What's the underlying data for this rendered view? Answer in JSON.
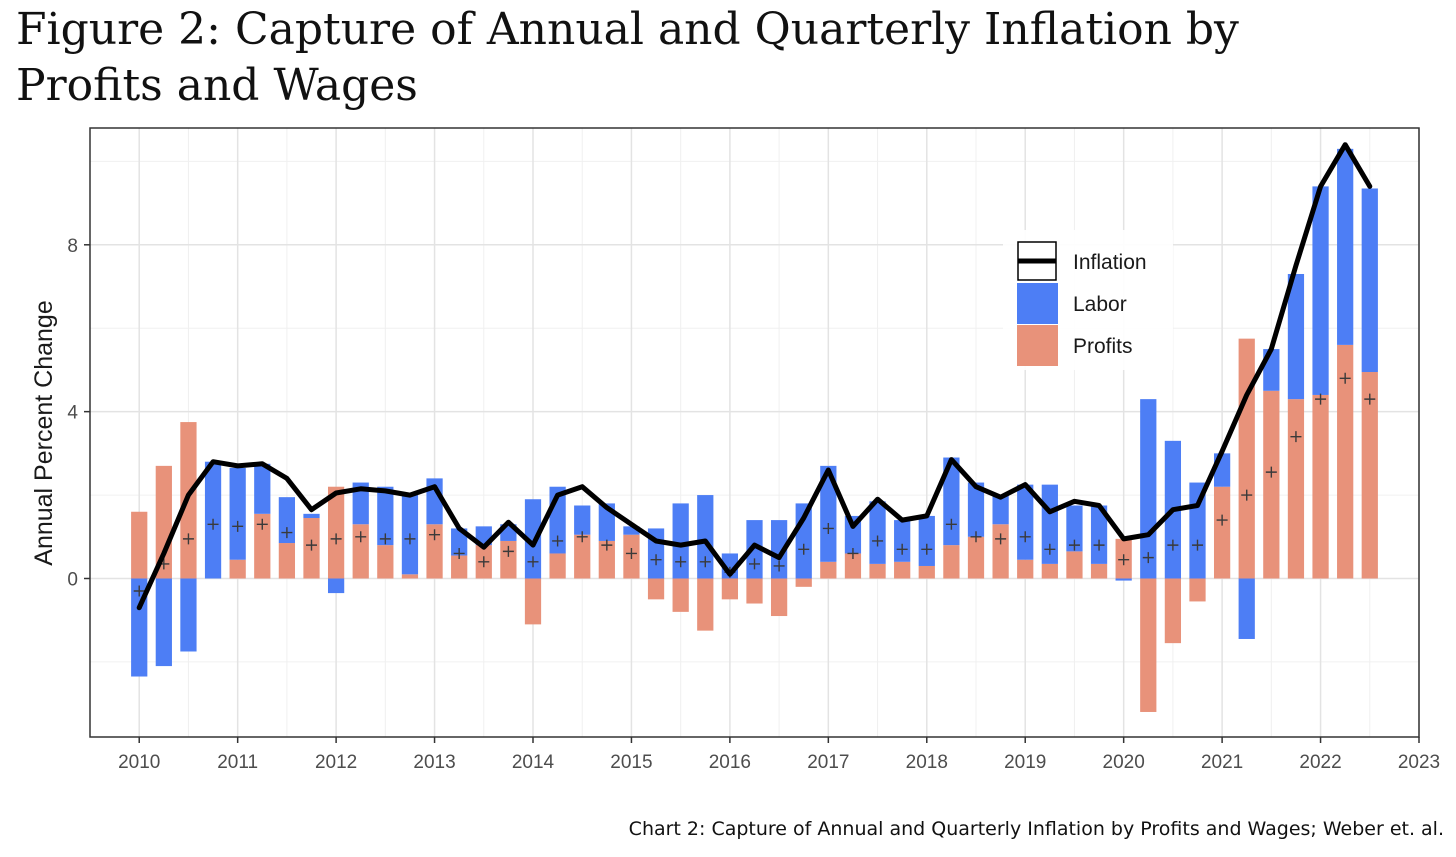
{
  "title": "Figure 2: Capture of Annual and Quarterly Inflation by Profits and Wages",
  "caption": "Chart 2: Capture of Annual and Quarterly Inflation by Profits and Wages; Weber et. al.",
  "chart_data": {
    "type": "bar",
    "subtype": "stacked bar with line and point markers",
    "xlabel": "",
    "ylabel": "Annual Percent Change",
    "xlim": [
      2009.5,
      2023
    ],
    "ylim": [
      -3.8,
      10.8
    ],
    "xticks": [
      "2010",
      "2011",
      "2012",
      "2013",
      "2014",
      "2015",
      "2016",
      "2017",
      "2018",
      "2019",
      "2020",
      "2021",
      "2022",
      "2023"
    ],
    "yticks": [
      "0",
      "4",
      "8"
    ],
    "grid": true,
    "legend_position": "top-right",
    "colors": {
      "labor": "#4d7ef5",
      "profits": "#e8927a",
      "inflation": "#000000"
    },
    "legend": [
      "Inflation",
      "Labor",
      "Profits"
    ],
    "x": [
      2010.0,
      2010.25,
      2010.5,
      2010.75,
      2011.0,
      2011.25,
      2011.5,
      2011.75,
      2012.0,
      2012.25,
      2012.5,
      2012.75,
      2013.0,
      2013.25,
      2013.5,
      2013.75,
      2014.0,
      2014.25,
      2014.5,
      2014.75,
      2015.0,
      2015.25,
      2015.5,
      2015.75,
      2016.0,
      2016.25,
      2016.5,
      2016.75,
      2017.0,
      2017.25,
      2017.5,
      2017.75,
      2018.0,
      2018.25,
      2018.5,
      2018.75,
      2019.0,
      2019.25,
      2019.5,
      2019.75,
      2020.0,
      2020.25,
      2020.5,
      2020.75,
      2021.0,
      2021.25,
      2021.5,
      2021.75,
      2022.0,
      2022.25,
      2022.5
    ],
    "series": [
      {
        "name": "Labor",
        "values": [
          -2.35,
          -2.1,
          -1.75,
          2.8,
          2.2,
          1.2,
          1.1,
          0.1,
          -0.35,
          1.0,
          1.4,
          1.9,
          1.1,
          0.65,
          0.45,
          0.4,
          1.9,
          1.6,
          0.7,
          0.9,
          0.2,
          1.2,
          1.8,
          2.0,
          0.6,
          1.4,
          1.4,
          1.8,
          2.3,
          0.9,
          1.5,
          1.0,
          1.2,
          2.1,
          1.3,
          0.7,
          1.8,
          1.9,
          1.1,
          1.4,
          -0.05,
          4.3,
          3.3,
          2.3,
          0.8,
          -1.45,
          1.0,
          3.0,
          5.0,
          4.7,
          4.4
        ]
      },
      {
        "name": "Profits",
        "values": [
          1.6,
          2.7,
          3.75,
          0,
          0.45,
          1.55,
          0.85,
          1.45,
          2.2,
          1.3,
          0.8,
          0.1,
          1.3,
          0.55,
          0.8,
          0.9,
          -1.1,
          0.6,
          1.05,
          0.9,
          1.05,
          -0.5,
          -0.8,
          -1.25,
          -0.5,
          -0.6,
          -0.9,
          -0.2,
          0.4,
          0.6,
          0.35,
          0.4,
          0.3,
          0.8,
          1.0,
          1.3,
          0.45,
          0.35,
          0.65,
          0.35,
          0.95,
          -3.2,
          -1.55,
          -0.55,
          2.2,
          5.75,
          4.5,
          4.3,
          4.4,
          5.6,
          4.95
        ]
      },
      {
        "name": "Inflation",
        "values": [
          -0.7,
          0.6,
          2.0,
          2.8,
          2.7,
          2.75,
          2.4,
          1.65,
          2.05,
          2.15,
          2.1,
          2.0,
          2.2,
          1.2,
          0.75,
          1.35,
          0.8,
          2.0,
          2.2,
          1.7,
          1.3,
          0.9,
          0.8,
          0.9,
          0.1,
          0.8,
          0.5,
          1.45,
          2.6,
          1.25,
          1.9,
          1.4,
          1.5,
          2.85,
          2.2,
          1.95,
          2.25,
          1.6,
          1.85,
          1.75,
          0.95,
          1.05,
          1.65,
          1.75,
          3.05,
          4.4,
          5.5,
          7.5,
          9.4,
          10.4,
          9.4
        ]
      }
    ],
    "markers": {
      "shape": "+",
      "values": [
        -0.3,
        0.35,
        0.95,
        1.3,
        1.25,
        1.3,
        1.1,
        0.8,
        0.95,
        1.0,
        0.95,
        0.95,
        1.05,
        0.6,
        0.4,
        0.65,
        0.4,
        0.9,
        1.0,
        0.8,
        0.6,
        0.45,
        0.4,
        0.4,
        0.15,
        0.35,
        0.3,
        0.7,
        1.2,
        0.6,
        0.9,
        0.7,
        0.7,
        1.3,
        1.0,
        0.95,
        1.0,
        0.7,
        0.8,
        0.8,
        0.45,
        0.5,
        0.8,
        0.8,
        1.4,
        2.0,
        2.55,
        3.4,
        4.3,
        4.8,
        4.3
      ]
    }
  }
}
